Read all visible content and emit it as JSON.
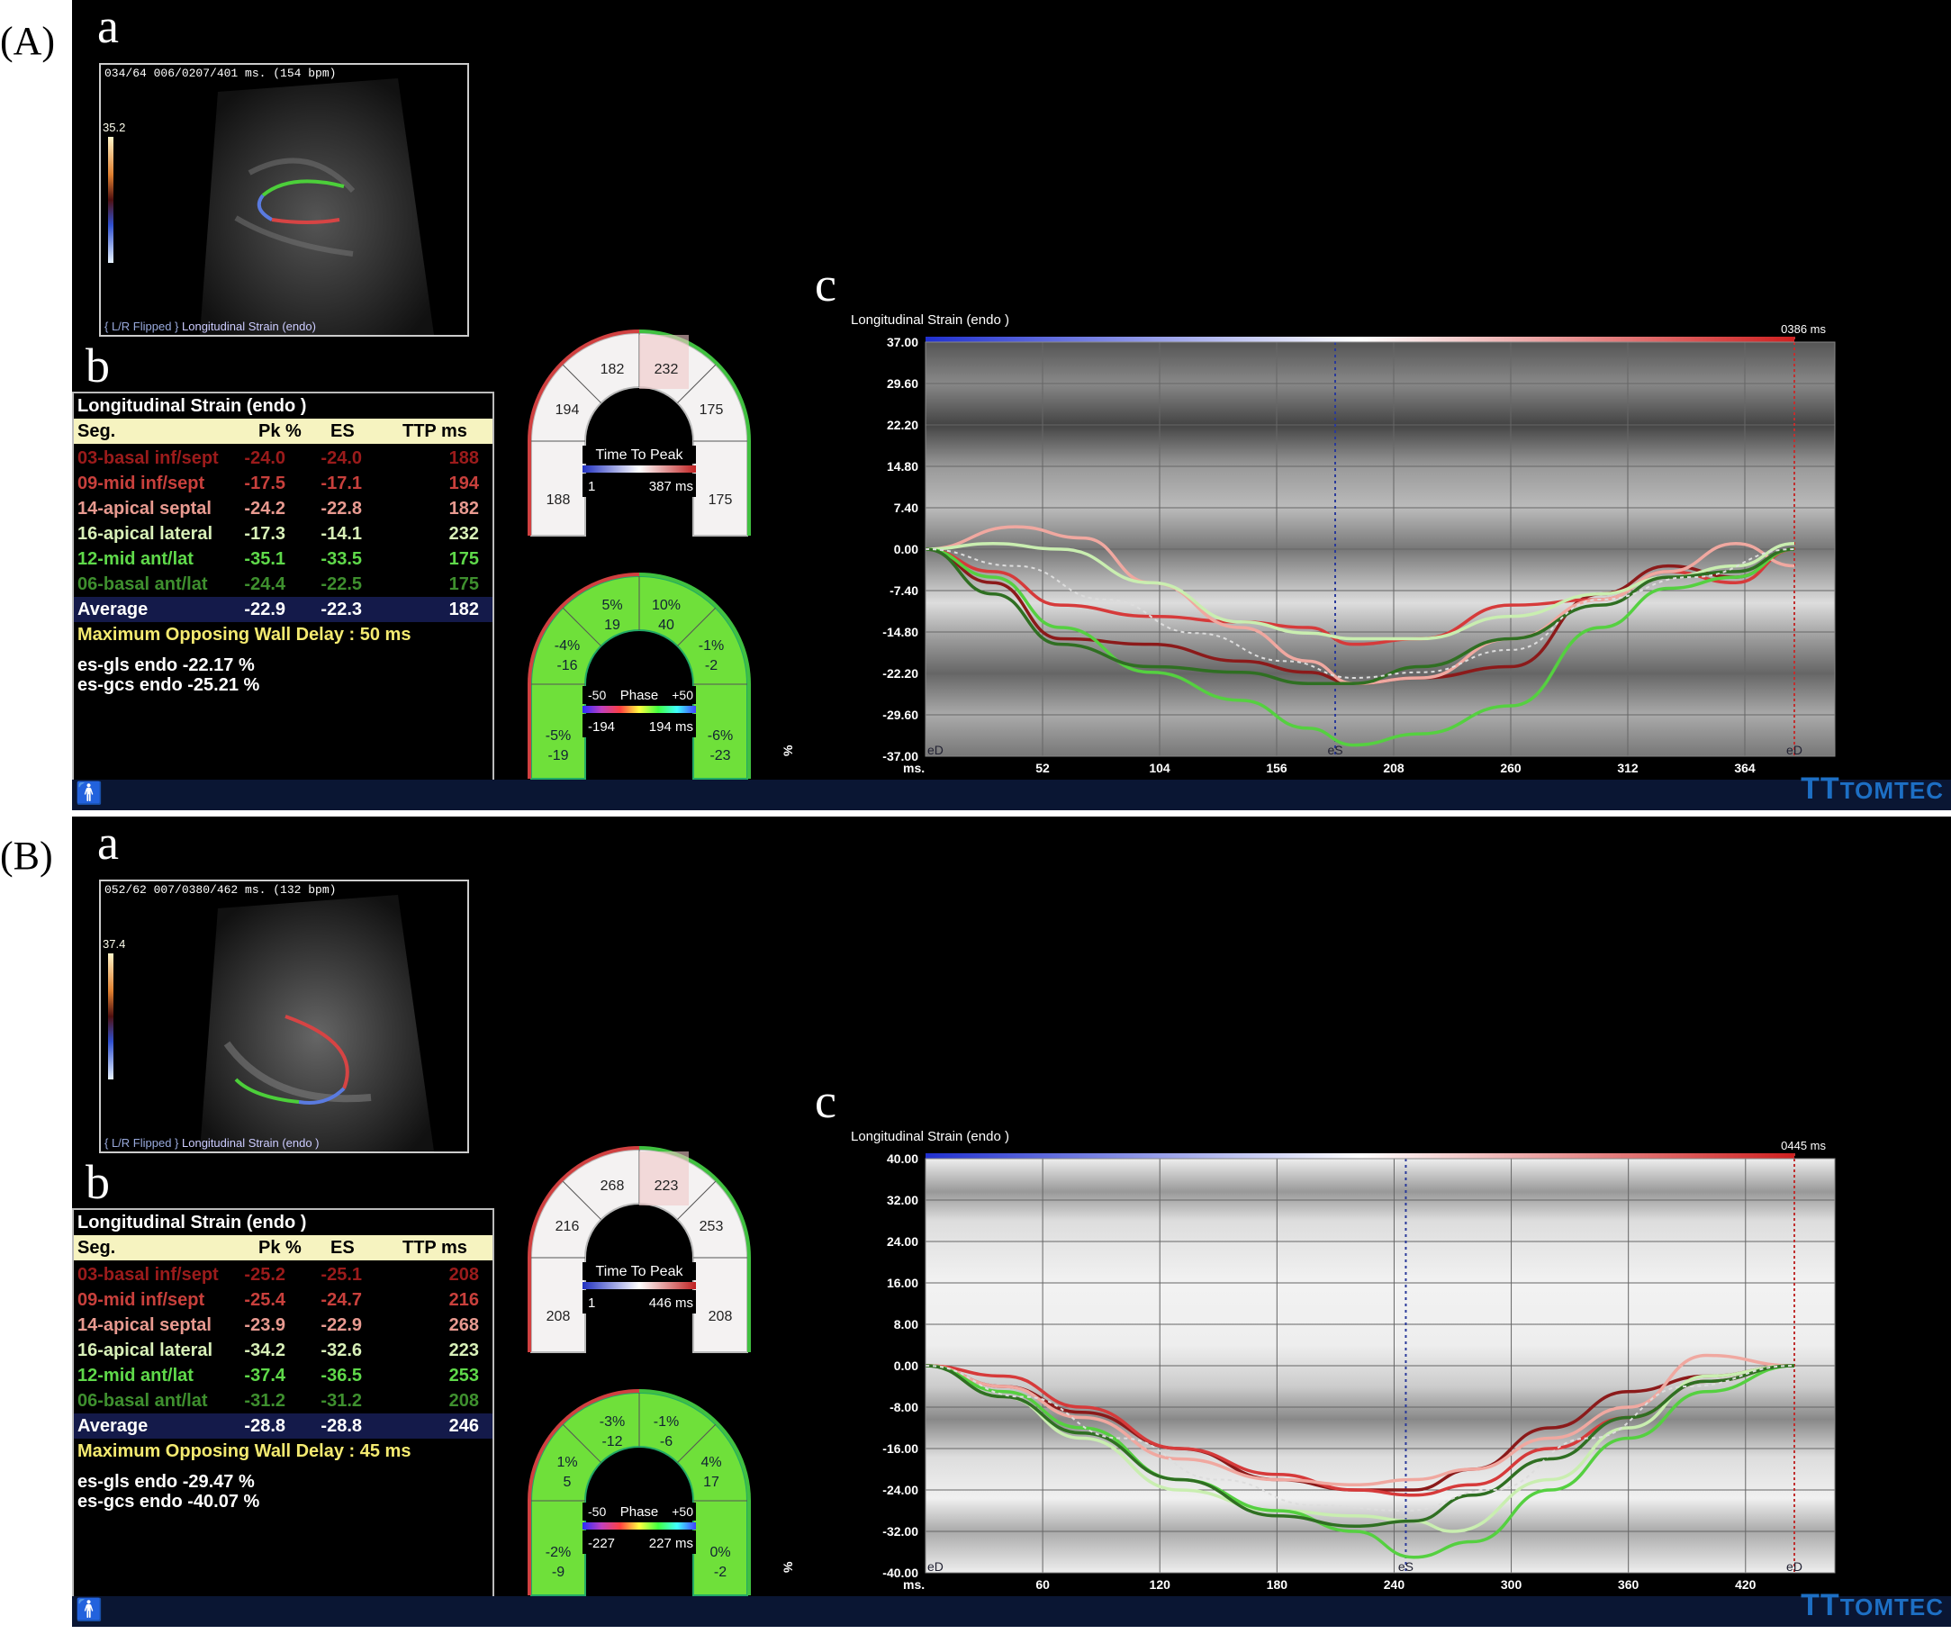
{
  "panels": [
    {
      "id": "A",
      "panel_label": "(A)",
      "sub_a": "a",
      "sub_b": "b",
      "sub_c": "c",
      "echo": {
        "header": "034/64 006/0207/401 ms. (154 bpm)",
        "colorbar_value": "35.2",
        "footer_flip": "{ L/R Flipped }",
        "footer_mode": "Longitudinal Strain (endo)"
      },
      "table": {
        "title": "Longitudinal Strain (endo )",
        "headers": [
          "Seg.",
          "Pk %",
          "ES",
          "TTP ms"
        ],
        "rows": [
          {
            "seg": "03-basal inf/sept",
            "pk": "-24.0",
            "es": "-24.0",
            "ttp": "188",
            "color": "#9b1b1b"
          },
          {
            "seg": "09-mid inf/sept",
            "pk": "-17.5",
            "es": "-17.1",
            "ttp": "194",
            "color": "#c8403c"
          },
          {
            "seg": "14-apical septal",
            "pk": "-24.2",
            "es": "-22.8",
            "ttp": "182",
            "color": "#e89a90"
          },
          {
            "seg": "16-apical lateral",
            "pk": "-17.3",
            "es": "-14.1",
            "ttp": "232",
            "color": "#d8f0b8"
          },
          {
            "seg": "12-mid ant/lat",
            "pk": "-35.1",
            "es": "-33.5",
            "ttp": "175",
            "color": "#5fd94a"
          },
          {
            "seg": "06-basal ant/lat",
            "pk": "-24.4",
            "es": "-22.5",
            "ttp": "175",
            "color": "#3e8f2e"
          }
        ],
        "average": {
          "seg": "Average",
          "pk": "-22.9",
          "es": "-22.3",
          "ttp": "182"
        },
        "delay": "Maximum Opposing Wall Delay : 50 ms",
        "gls": "es-gls endo -22.17 %",
        "gcs": "es-gcs endo -25.21 %"
      },
      "bullseye_ttp": {
        "title": "Time To Peak",
        "min": "1",
        "max": "387 ms",
        "segments": [
          "188",
          "194",
          "182",
          "232",
          "175",
          "175"
        ]
      },
      "bullseye_phase": {
        "title": "Phase",
        "scale_min": "-50",
        "scale_max": "+50",
        "min": "-194",
        "max": "194 ms",
        "segments": [
          {
            "pct": "-5%",
            "val": "-19"
          },
          {
            "pct": "-4%",
            "val": "-16"
          },
          {
            "pct": "5%",
            "val": "19"
          },
          {
            "pct": "10%",
            "val": "40"
          },
          {
            "pct": "-1%",
            "val": "-2"
          },
          {
            "pct": "-6%",
            "val": "-23"
          }
        ]
      },
      "graph": {
        "title": "Longitudinal Strain (endo )",
        "time_label": "0386 ms",
        "ylabel": "%",
        "xlabel": "ms.",
        "es_label": "eS",
        "ed_label": "eD"
      }
    },
    {
      "id": "B",
      "panel_label": "(B)",
      "sub_a": "a",
      "sub_b": "b",
      "sub_c": "c",
      "echo": {
        "header": "052/62 007/0380/462 ms. (132 bpm)",
        "colorbar_value": "37.4",
        "footer_flip": "{ L/R Flipped }",
        "footer_mode": "Longitudinal Strain (endo )"
      },
      "table": {
        "title": "Longitudinal Strain (endo )",
        "headers": [
          "Seg.",
          "Pk %",
          "ES",
          "TTP ms"
        ],
        "rows": [
          {
            "seg": "03-basal inf/sept",
            "pk": "-25.2",
            "es": "-25.1",
            "ttp": "208",
            "color": "#9b1b1b"
          },
          {
            "seg": "09-mid inf/sept",
            "pk": "-25.4",
            "es": "-24.7",
            "ttp": "216",
            "color": "#c8403c"
          },
          {
            "seg": "14-apical septal",
            "pk": "-23.9",
            "es": "-22.9",
            "ttp": "268",
            "color": "#e89a90"
          },
          {
            "seg": "16-apical lateral",
            "pk": "-34.2",
            "es": "-32.6",
            "ttp": "223",
            "color": "#d8f0b8"
          },
          {
            "seg": "12-mid ant/lat",
            "pk": "-37.4",
            "es": "-36.5",
            "ttp": "253",
            "color": "#5fd94a"
          },
          {
            "seg": "06-basal ant/lat",
            "pk": "-31.2",
            "es": "-31.2",
            "ttp": "208",
            "color": "#3e8f2e"
          }
        ],
        "average": {
          "seg": "Average",
          "pk": "-28.8",
          "es": "-28.8",
          "ttp": "246"
        },
        "delay": "Maximum Opposing Wall Delay : 45 ms",
        "gls": "es-gls endo -29.47 %",
        "gcs": "es-gcs endo -40.07 %"
      },
      "bullseye_ttp": {
        "title": "Time To Peak",
        "min": "1",
        "max": "446 ms",
        "segments": [
          "208",
          "216",
          "268",
          "223",
          "253",
          "208"
        ]
      },
      "bullseye_phase": {
        "title": "Phase",
        "scale_min": "-50",
        "scale_max": "+50",
        "min": "-227",
        "max": "227 ms",
        "segments": [
          {
            "pct": "-2%",
            "val": "-9"
          },
          {
            "pct": "1%",
            "val": "5"
          },
          {
            "pct": "-3%",
            "val": "-12"
          },
          {
            "pct": "-1%",
            "val": "-6"
          },
          {
            "pct": "4%",
            "val": "17"
          },
          {
            "pct": "0%",
            "val": "-2"
          }
        ]
      },
      "graph": {
        "title": "Longitudinal Strain (endo )",
        "time_label": "0445 ms",
        "ylabel": "%",
        "xlabel": "ms.",
        "es_label": "eS",
        "ed_label": "eD"
      }
    }
  ],
  "branding": "TOMTEC",
  "chart_data": [
    {
      "type": "line",
      "title": "Longitudinal Strain (endo )",
      "ylabel": "%",
      "xlabel": "ms.",
      "xlim": [
        0,
        386
      ],
      "ylim": [
        -37.0,
        37.0
      ],
      "y_ticks": [
        "37.00",
        "29.60",
        "22.20",
        "14.80",
        "7.40",
        "0.00",
        "-7.40",
        "-14.80",
        "-22.20",
        "-29.60",
        "-37.00"
      ],
      "x_ticks": [
        "52",
        "104",
        "156",
        "208",
        "260",
        "312",
        "364"
      ],
      "es_time": 182,
      "series": [
        {
          "color": "#8b1a1a",
          "x": [
            0,
            30,
            60,
            100,
            140,
            170,
            190,
            220,
            260,
            300,
            330,
            360,
            386
          ],
          "y": [
            0,
            -6,
            -16,
            -17,
            -20,
            -22,
            -24,
            -23,
            -21,
            -8,
            -3,
            -5,
            0
          ]
        },
        {
          "color": "#d63a3a",
          "x": [
            0,
            30,
            60,
            100,
            140,
            170,
            190,
            220,
            260,
            300,
            330,
            360,
            386
          ],
          "y": [
            0,
            -4,
            -10,
            -12,
            -13,
            -14,
            -17,
            -16,
            -10,
            -9,
            -4,
            -6,
            0
          ]
        },
        {
          "color": "#f0a8a0",
          "x": [
            0,
            40,
            70,
            100,
            140,
            170,
            190,
            220,
            260,
            300,
            330,
            360,
            386
          ],
          "y": [
            0,
            4,
            2,
            -6,
            -14,
            -20,
            -24,
            -23,
            -16,
            -9,
            -4,
            1,
            -3
          ]
        },
        {
          "color": "#c9eeb0",
          "x": [
            0,
            30,
            60,
            100,
            140,
            170,
            190,
            220,
            260,
            300,
            330,
            360,
            386
          ],
          "y": [
            0,
            1,
            0,
            -6,
            -13,
            -15,
            -16,
            -16,
            -12,
            -8,
            -5,
            -3,
            1
          ]
        },
        {
          "color": "#55d040",
          "x": [
            0,
            30,
            60,
            100,
            140,
            170,
            190,
            220,
            260,
            300,
            330,
            360,
            386
          ],
          "y": [
            0,
            -5,
            -14,
            -22,
            -27,
            -32,
            -35,
            -33,
            -28,
            -14,
            -7,
            -5,
            0
          ]
        },
        {
          "color": "#2f6f22",
          "x": [
            0,
            30,
            60,
            100,
            140,
            170,
            190,
            220,
            260,
            300,
            330,
            360,
            386
          ],
          "y": [
            0,
            -8,
            -17,
            -21,
            -22,
            -24,
            -24,
            -21,
            -16,
            -10,
            -5,
            -4,
            0
          ]
        },
        {
          "color": "#dddddd",
          "x": [
            0,
            40,
            80,
            120,
            160,
            190,
            220,
            260,
            300,
            340,
            386
          ],
          "y": [
            0,
            -3,
            -9,
            -15,
            -20,
            -23,
            -22,
            -18,
            -9,
            -5,
            0
          ]
        }
      ]
    },
    {
      "type": "line",
      "title": "Longitudinal Strain (endo )",
      "ylabel": "%",
      "xlabel": "ms.",
      "xlim": [
        0,
        445
      ],
      "ylim": [
        -40.0,
        40.0
      ],
      "y_ticks": [
        "40.00",
        "32.00",
        "24.00",
        "16.00",
        "8.00",
        "0.00",
        "-8.00",
        "-16.00",
        "-24.00",
        "-32.00",
        "-40.00"
      ],
      "x_ticks": [
        "60",
        "120",
        "180",
        "240",
        "300",
        "360",
        "420"
      ],
      "es_time": 246,
      "series": [
        {
          "color": "#8b1a1a",
          "x": [
            0,
            40,
            80,
            130,
            180,
            220,
            250,
            280,
            320,
            360,
            400,
            445
          ],
          "y": [
            0,
            -4,
            -9,
            -16,
            -22,
            -24,
            -24,
            -20,
            -12,
            -5,
            -2,
            0
          ]
        },
        {
          "color": "#d63a3a",
          "x": [
            0,
            40,
            80,
            130,
            180,
            220,
            250,
            280,
            320,
            360,
            400,
            445
          ],
          "y": [
            0,
            -2,
            -8,
            -16,
            -21,
            -24,
            -25,
            -23,
            -16,
            -10,
            -3,
            0
          ]
        },
        {
          "color": "#f0a8a0",
          "x": [
            0,
            40,
            80,
            130,
            180,
            220,
            250,
            280,
            320,
            360,
            400,
            445
          ],
          "y": [
            0,
            -4,
            -10,
            -18,
            -22,
            -23,
            -22,
            -20,
            -14,
            -8,
            2,
            0
          ]
        },
        {
          "color": "#c9eeb0",
          "x": [
            0,
            40,
            80,
            130,
            180,
            220,
            250,
            270,
            320,
            360,
            400,
            445
          ],
          "y": [
            0,
            -6,
            -14,
            -24,
            -28,
            -29,
            -30,
            -32,
            -22,
            -12,
            -2,
            0
          ]
        },
        {
          "color": "#55d040",
          "x": [
            0,
            40,
            80,
            130,
            180,
            220,
            250,
            280,
            320,
            360,
            400,
            445
          ],
          "y": [
            0,
            -5,
            -12,
            -22,
            -28,
            -32,
            -37,
            -34,
            -24,
            -14,
            -5,
            0
          ]
        },
        {
          "color": "#2f6f22",
          "x": [
            0,
            40,
            80,
            130,
            180,
            220,
            250,
            280,
            320,
            360,
            400,
            445
          ],
          "y": [
            0,
            -6,
            -13,
            -22,
            -29,
            -31,
            -30,
            -25,
            -18,
            -10,
            -3,
            0
          ]
        },
        {
          "color": "#dddddd",
          "x": [
            0,
            50,
            100,
            150,
            200,
            246,
            290,
            340,
            390,
            445
          ],
          "y": [
            0,
            -6,
            -14,
            -22,
            -27,
            -28,
            -24,
            -14,
            -4,
            0
          ]
        }
      ]
    }
  ]
}
